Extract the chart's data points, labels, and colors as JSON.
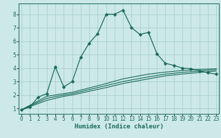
{
  "xlabel": "Humidex (Indice chaleur)",
  "bg_color": "#cce8e8",
  "grid_color": "#aad0d0",
  "line_color": "#1a6b5a",
  "xlim": [
    -0.3,
    23.3
  ],
  "ylim": [
    0.6,
    8.8
  ],
  "x_ticks": [
    0,
    1,
    2,
    3,
    4,
    5,
    6,
    7,
    8,
    9,
    10,
    11,
    12,
    13,
    14,
    15,
    16,
    17,
    18,
    19,
    20,
    21,
    22,
    23
  ],
  "y_ticks": [
    1,
    2,
    3,
    4,
    5,
    6,
    7,
    8
  ],
  "series": [
    {
      "x": [
        0,
        1,
        2,
        3,
        4,
        5,
        6,
        7,
        8,
        9,
        10,
        11,
        12,
        13,
        14,
        15,
        16,
        17,
        18,
        19,
        20,
        21,
        22,
        23
      ],
      "y": [
        0.9,
        1.1,
        1.85,
        2.1,
        4.1,
        2.6,
        3.0,
        4.8,
        5.85,
        6.55,
        8.0,
        8.0,
        8.3,
        7.0,
        6.5,
        6.65,
        5.05,
        4.35,
        4.2,
        4.0,
        3.95,
        3.8,
        3.65,
        3.55
      ],
      "marker": true
    },
    {
      "x": [
        0,
        3,
        5,
        6,
        10,
        12,
        15,
        17,
        19,
        21,
        23
      ],
      "y": [
        0.9,
        1.9,
        2.1,
        2.2,
        2.85,
        3.2,
        3.55,
        3.7,
        3.82,
        3.9,
        3.95
      ],
      "marker": false
    },
    {
      "x": [
        0,
        3,
        5,
        6,
        10,
        12,
        15,
        17,
        19,
        21,
        23
      ],
      "y": [
        0.9,
        1.75,
        2.0,
        2.1,
        2.7,
        3.0,
        3.35,
        3.55,
        3.68,
        3.78,
        3.88
      ],
      "marker": false
    },
    {
      "x": [
        0,
        3,
        5,
        6,
        10,
        12,
        15,
        17,
        19,
        21,
        23
      ],
      "y": [
        0.9,
        1.6,
        1.9,
        2.0,
        2.55,
        2.85,
        3.2,
        3.42,
        3.56,
        3.67,
        3.78
      ],
      "marker": false
    }
  ]
}
